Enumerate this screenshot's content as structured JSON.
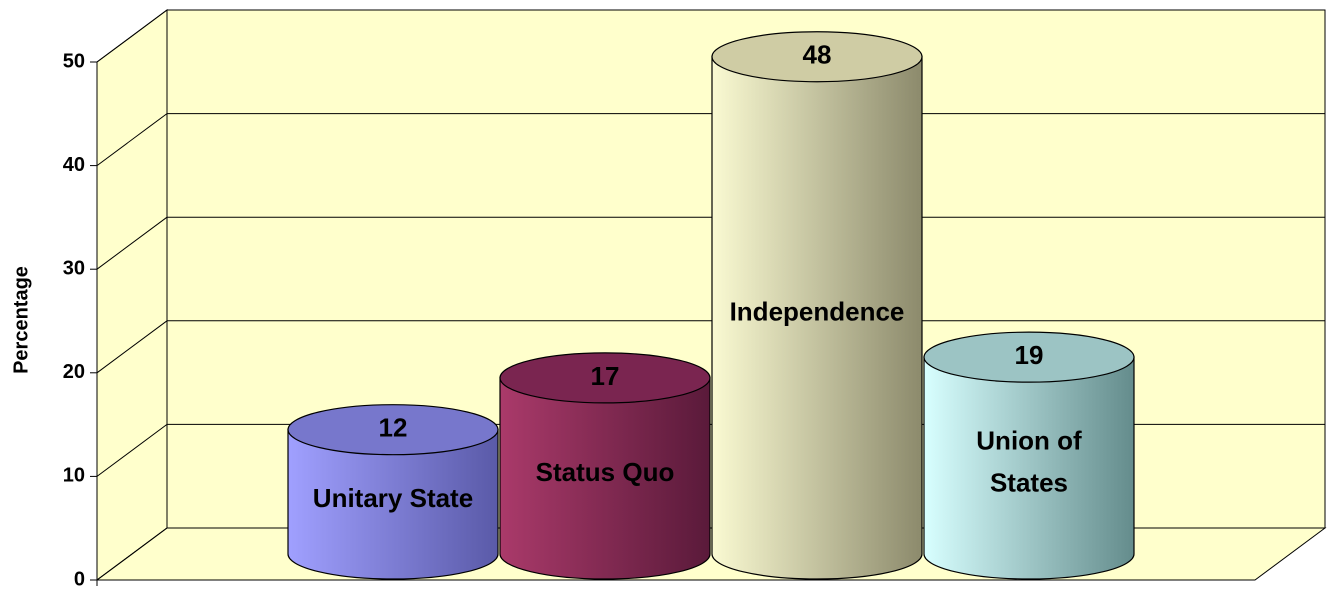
{
  "chart_data": {
    "type": "bar3d-cylinder",
    "ylabel": "Percentage",
    "categories": [
      "Unitary State",
      "Status Quo",
      "Independence",
      "Union of\nStates"
    ],
    "values": [
      12,
      17,
      48,
      19
    ],
    "colors": [
      [
        "#a0a0ff",
        "#5a5aa8",
        "#7777cc"
      ],
      [
        "#aa3a6a",
        "#5a1a3a",
        "#7a2550"
      ],
      [
        "#fafad2",
        "#8c8a6c",
        "#cfcca4"
      ],
      [
        "#d8ffff",
        "#648c8c",
        "#9cc4c4"
      ]
    ],
    "wall_color": "#ffffcc",
    "ylim": [
      0,
      50
    ],
    "yticks": [
      0,
      10,
      20,
      30,
      40,
      50
    ],
    "grid": true
  }
}
